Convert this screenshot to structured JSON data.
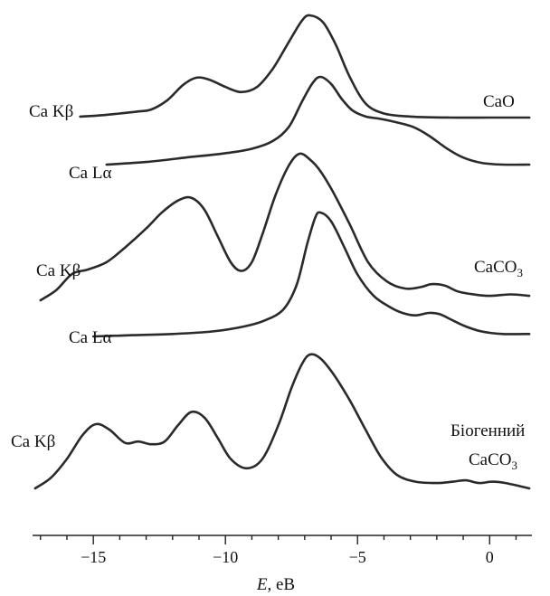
{
  "chart_data": {
    "type": "line",
    "xlabel_italic": "E",
    "xlabel_rest": ", eB",
    "xlim": [
      -17.3,
      1.6
    ],
    "xticks": [
      -15,
      -10,
      -5,
      0
    ],
    "xtick_labels": [
      "−15",
      "−10",
      "−5",
      "0"
    ],
    "yaxis_shown": false,
    "grid": false,
    "series": [
      {
        "name": "Ca Kβ",
        "group": "CaO",
        "points": [
          [
            -15.5,
            0.01
          ],
          [
            -14.8,
            0.02
          ],
          [
            -14.0,
            0.04
          ],
          [
            -13.3,
            0.06
          ],
          [
            -12.8,
            0.08
          ],
          [
            -12.2,
            0.17
          ],
          [
            -11.6,
            0.32
          ],
          [
            -11.1,
            0.39
          ],
          [
            -10.6,
            0.37
          ],
          [
            -10.0,
            0.3
          ],
          [
            -9.4,
            0.25
          ],
          [
            -8.8,
            0.3
          ],
          [
            -8.2,
            0.48
          ],
          [
            -7.6,
            0.74
          ],
          [
            -7.1,
            0.95
          ],
          [
            -6.8,
            1.0
          ],
          [
            -6.3,
            0.93
          ],
          [
            -5.8,
            0.7
          ],
          [
            -5.3,
            0.4
          ],
          [
            -4.7,
            0.14
          ],
          [
            -4.0,
            0.04
          ],
          [
            -3.0,
            0.01
          ],
          [
            -1.5,
            0.0
          ],
          [
            0.0,
            0.0
          ],
          [
            1.5,
            0.0
          ]
        ]
      },
      {
        "name": "Ca Lα",
        "group": "CaO",
        "points": [
          [
            -14.5,
            0.0
          ],
          [
            -13.0,
            0.03
          ],
          [
            -11.5,
            0.08
          ],
          [
            -10.0,
            0.13
          ],
          [
            -9.0,
            0.18
          ],
          [
            -8.2,
            0.27
          ],
          [
            -7.6,
            0.43
          ],
          [
            -7.1,
            0.72
          ],
          [
            -6.7,
            0.93
          ],
          [
            -6.4,
            1.0
          ],
          [
            -6.0,
            0.92
          ],
          [
            -5.6,
            0.75
          ],
          [
            -5.2,
            0.62
          ],
          [
            -4.7,
            0.55
          ],
          [
            -4.1,
            0.52
          ],
          [
            -3.5,
            0.48
          ],
          [
            -2.9,
            0.43
          ],
          [
            -2.3,
            0.33
          ],
          [
            -1.6,
            0.18
          ],
          [
            -1.0,
            0.08
          ],
          [
            -0.3,
            0.02
          ],
          [
            0.5,
            0.0
          ],
          [
            1.5,
            0.0
          ]
        ]
      },
      {
        "name": "Ca Kβ",
        "group": "CaCO3",
        "points": [
          [
            -17.0,
            0.0
          ],
          [
            -16.4,
            0.07
          ],
          [
            -15.8,
            0.18
          ],
          [
            -15.2,
            0.21
          ],
          [
            -14.5,
            0.26
          ],
          [
            -13.8,
            0.36
          ],
          [
            -13.0,
            0.49
          ],
          [
            -12.4,
            0.6
          ],
          [
            -11.8,
            0.68
          ],
          [
            -11.3,
            0.7
          ],
          [
            -10.8,
            0.62
          ],
          [
            -10.3,
            0.44
          ],
          [
            -9.8,
            0.26
          ],
          [
            -9.4,
            0.2
          ],
          [
            -9.0,
            0.26
          ],
          [
            -8.6,
            0.45
          ],
          [
            -8.1,
            0.72
          ],
          [
            -7.6,
            0.92
          ],
          [
            -7.2,
            1.0
          ],
          [
            -6.8,
            0.96
          ],
          [
            -6.4,
            0.88
          ],
          [
            -5.9,
            0.73
          ],
          [
            -5.3,
            0.52
          ],
          [
            -4.6,
            0.26
          ],
          [
            -3.9,
            0.13
          ],
          [
            -3.2,
            0.08
          ],
          [
            -2.6,
            0.09
          ],
          [
            -2.2,
            0.11
          ],
          [
            -1.7,
            0.1
          ],
          [
            -1.2,
            0.06
          ],
          [
            -0.6,
            0.04
          ],
          [
            0.0,
            0.03
          ],
          [
            0.8,
            0.04
          ],
          [
            1.5,
            0.03
          ]
        ]
      },
      {
        "name": "Ca Lα",
        "group": "CaCO3",
        "points": [
          [
            -15.0,
            0.0
          ],
          [
            -13.5,
            0.01
          ],
          [
            -12.0,
            0.02
          ],
          [
            -10.5,
            0.04
          ],
          [
            -9.3,
            0.08
          ],
          [
            -8.5,
            0.13
          ],
          [
            -7.8,
            0.22
          ],
          [
            -7.3,
            0.42
          ],
          [
            -6.9,
            0.75
          ],
          [
            -6.6,
            0.96
          ],
          [
            -6.4,
            1.0
          ],
          [
            -6.0,
            0.93
          ],
          [
            -5.5,
            0.72
          ],
          [
            -5.0,
            0.5
          ],
          [
            -4.4,
            0.33
          ],
          [
            -3.8,
            0.24
          ],
          [
            -3.3,
            0.19
          ],
          [
            -2.8,
            0.17
          ],
          [
            -2.3,
            0.19
          ],
          [
            -1.9,
            0.18
          ],
          [
            -1.4,
            0.13
          ],
          [
            -0.9,
            0.08
          ],
          [
            -0.3,
            0.04
          ],
          [
            0.5,
            0.02
          ],
          [
            1.5,
            0.02
          ]
        ]
      },
      {
        "name": "Ca Kβ",
        "group": "Біогенний CaCO3",
        "points": [
          [
            -17.2,
            0.0
          ],
          [
            -16.6,
            0.08
          ],
          [
            -16.0,
            0.22
          ],
          [
            -15.4,
            0.4
          ],
          [
            -14.9,
            0.48
          ],
          [
            -14.4,
            0.44
          ],
          [
            -13.8,
            0.34
          ],
          [
            -13.3,
            0.35
          ],
          [
            -12.8,
            0.33
          ],
          [
            -12.3,
            0.35
          ],
          [
            -11.8,
            0.47
          ],
          [
            -11.3,
            0.57
          ],
          [
            -10.8,
            0.53
          ],
          [
            -10.3,
            0.38
          ],
          [
            -9.8,
            0.22
          ],
          [
            -9.2,
            0.15
          ],
          [
            -8.6,
            0.22
          ],
          [
            -8.0,
            0.47
          ],
          [
            -7.5,
            0.75
          ],
          [
            -7.1,
            0.93
          ],
          [
            -6.8,
            1.0
          ],
          [
            -6.4,
            0.97
          ],
          [
            -5.9,
            0.85
          ],
          [
            -5.3,
            0.66
          ],
          [
            -4.7,
            0.44
          ],
          [
            -4.1,
            0.23
          ],
          [
            -3.5,
            0.1
          ],
          [
            -2.8,
            0.05
          ],
          [
            -2.0,
            0.04
          ],
          [
            -1.4,
            0.05
          ],
          [
            -0.9,
            0.06
          ],
          [
            -0.4,
            0.04
          ],
          [
            0.1,
            0.05
          ],
          [
            0.6,
            0.04
          ],
          [
            1.5,
            0.0
          ]
        ]
      }
    ]
  },
  "labels": {
    "kb1": "Ca Kβ",
    "la1": "Ca Lα",
    "cao": "CaO",
    "kb2": "Ca Kβ",
    "caco3": "CaCO",
    "la2": "Ca Lα",
    "kb3": "Ca Kβ",
    "bio_line1": "Біогенний",
    "bio_line2": "CaCO",
    "subscript3": "3"
  }
}
